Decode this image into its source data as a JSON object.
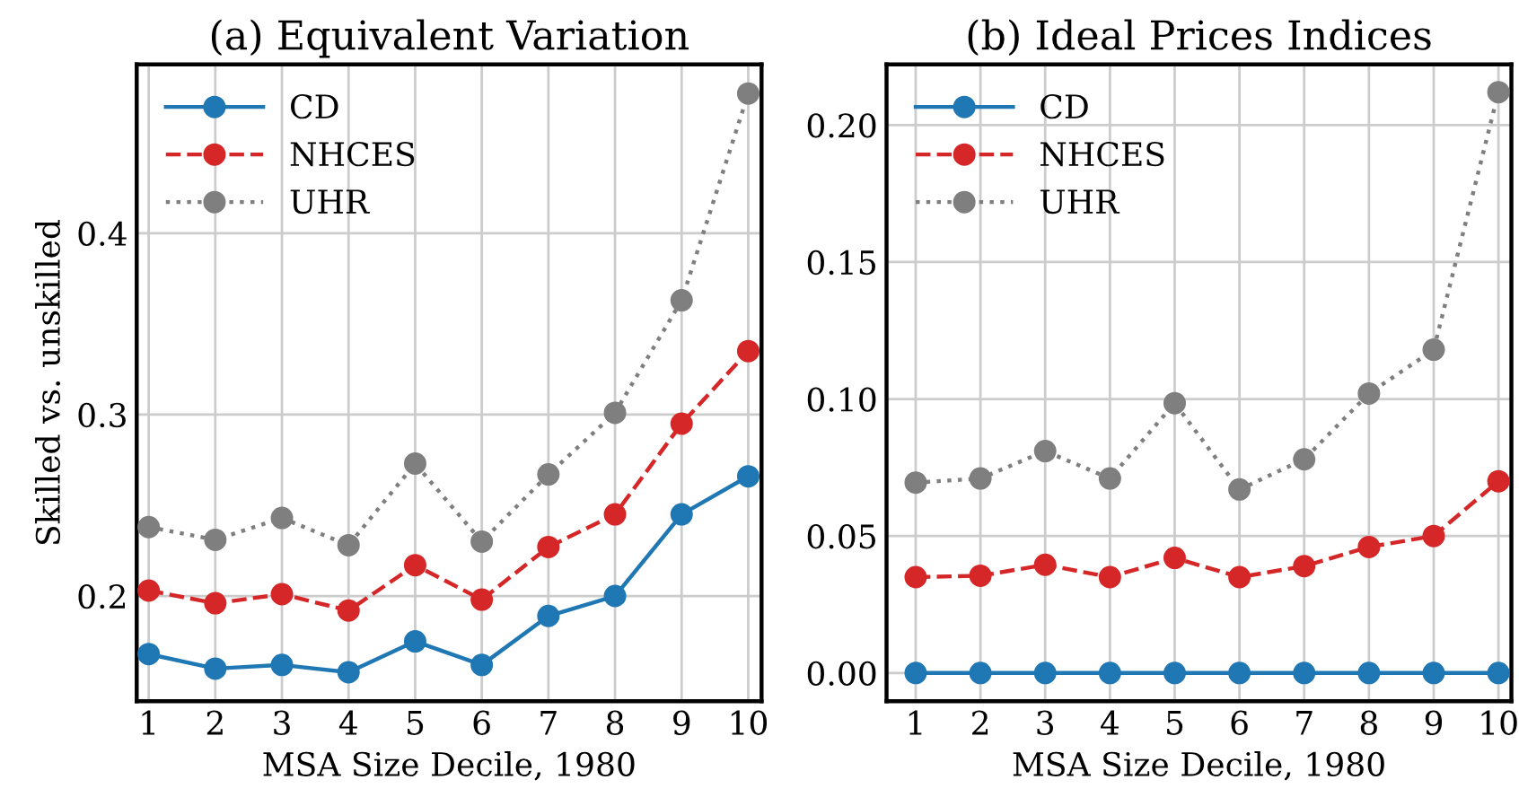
{
  "chart_data": [
    {
      "type": "line",
      "title": "(a) Equivalent Variation",
      "xlabel": "MSA Size Decile, 1980",
      "ylabel": "Skilled vs. unskilled",
      "x": [
        1,
        2,
        3,
        4,
        5,
        6,
        7,
        8,
        9,
        10
      ],
      "series": [
        {
          "name": "CD",
          "color": "#1f77b4",
          "line_style": "solid",
          "values": [
            0.168,
            0.16,
            0.162,
            0.158,
            0.175,
            0.162,
            0.189,
            0.2,
            0.245,
            0.266
          ]
        },
        {
          "name": "NHCES",
          "color": "#d62728",
          "line_style": "dashed",
          "values": [
            0.203,
            0.196,
            0.201,
            0.192,
            0.217,
            0.198,
            0.227,
            0.245,
            0.295,
            0.335
          ]
        },
        {
          "name": "UHR",
          "color": "#7f7f7f",
          "line_style": "dotted",
          "values": [
            0.238,
            0.231,
            0.243,
            0.228,
            0.273,
            0.23,
            0.267,
            0.301,
            0.363,
            0.477
          ]
        }
      ],
      "marker": "circle",
      "xlim": [
        0.82,
        10.2
      ],
      "ylim": [
        0.142,
        0.493
      ],
      "xticks": [
        1,
        2,
        3,
        4,
        5,
        6,
        7,
        8,
        9,
        10
      ],
      "yticks": [
        {
          "value": 0.2,
          "label": "0.2"
        },
        {
          "value": 0.3,
          "label": "0.3"
        },
        {
          "value": 0.4,
          "label": "0.4"
        }
      ],
      "grid": true,
      "legend": "top left"
    },
    {
      "type": "line",
      "title": "(b) Ideal Prices Indices",
      "xlabel": "MSA Size Decile, 1980",
      "x": [
        1,
        2,
        3,
        4,
        5,
        6,
        7,
        8,
        9,
        10
      ],
      "series": [
        {
          "name": "CD",
          "color": "#1f77b4",
          "line_style": "solid",
          "values": [
            0,
            0,
            0,
            0,
            0,
            0,
            0,
            0,
            0,
            0
          ]
        },
        {
          "name": "NHCES",
          "color": "#d62728",
          "line_style": "dashed",
          "values": [
            0.035,
            0.0355,
            0.0395,
            0.035,
            0.042,
            0.035,
            0.039,
            0.046,
            0.05,
            0.07
          ]
        },
        {
          "name": "UHR",
          "color": "#7f7f7f",
          "line_style": "dotted",
          "values": [
            0.0695,
            0.071,
            0.081,
            0.071,
            0.0985,
            0.067,
            0.078,
            0.102,
            0.118,
            0.212
          ]
        }
      ],
      "marker": "circle",
      "xlim": [
        0.55,
        10.2
      ],
      "ylim": [
        -0.0103,
        0.2221
      ],
      "xticks": [
        1,
        2,
        3,
        4,
        5,
        6,
        7,
        8,
        9,
        10
      ],
      "yticks": [
        {
          "value": 0,
          "label": "0.00"
        },
        {
          "value": 0.05,
          "label": "0.05"
        },
        {
          "value": 0.1,
          "label": "0.10"
        },
        {
          "value": 0.15,
          "label": "0.15"
        },
        {
          "value": 0.2,
          "label": "0.20"
        }
      ],
      "grid": true,
      "legend": "top left"
    }
  ]
}
